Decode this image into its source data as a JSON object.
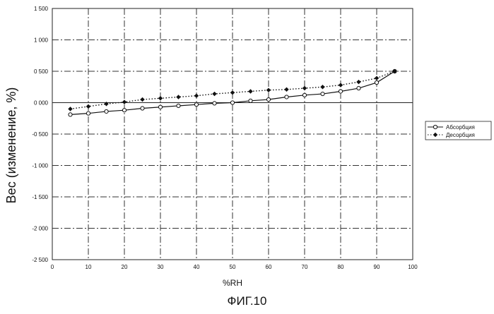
{
  "chart_data": {
    "type": "line",
    "xlabel": "%RH",
    "ylabel": "Вес (изменение, %)",
    "xlim": [
      0,
      100
    ],
    "ylim": [
      -2.5,
      1.5
    ],
    "x_ticks": [
      0,
      10,
      20,
      30,
      40,
      50,
      60,
      70,
      80,
      90,
      100
    ],
    "x_tick_labels": [
      "0",
      "10",
      "20",
      "30",
      "40",
      "50",
      "60",
      "70",
      "80",
      "90",
      "100"
    ],
    "y_ticks": [
      1.5,
      1.0,
      0.5,
      0.0,
      -0.5,
      -1.0,
      -1.5,
      -2.0,
      -2.5
    ],
    "y_tick_labels": [
      "1 500",
      "1 000",
      "0 500",
      "0 000",
      "-0 500",
      "-1 000",
      "-1 500",
      "-2 000",
      "-2 500"
    ],
    "grid": true,
    "legend_position": "right",
    "series": [
      {
        "name": "Абсорбция",
        "marker": "open-circle",
        "line": "solid",
        "x": [
          5,
          10,
          15,
          20,
          25,
          30,
          35,
          40,
          45,
          50,
          55,
          60,
          65,
          70,
          75,
          80,
          85,
          90,
          95
        ],
        "y": [
          -0.19,
          -0.17,
          -0.14,
          -0.12,
          -0.09,
          -0.07,
          -0.05,
          -0.03,
          -0.01,
          0.0,
          0.03,
          0.05,
          0.09,
          0.12,
          0.14,
          0.18,
          0.23,
          0.32,
          0.5
        ]
      },
      {
        "name": "Десорбция",
        "marker": "filled-diamond",
        "line": "dotted",
        "x": [
          5,
          10,
          15,
          20,
          25,
          30,
          35,
          40,
          45,
          50,
          55,
          60,
          65,
          70,
          75,
          80,
          85,
          90,
          95
        ],
        "y": [
          -0.1,
          -0.06,
          -0.02,
          0.01,
          0.05,
          0.07,
          0.09,
          0.11,
          0.14,
          0.16,
          0.18,
          0.2,
          0.21,
          0.23,
          0.25,
          0.28,
          0.33,
          0.39,
          0.5
        ]
      }
    ]
  },
  "caption": "ФИГ.10"
}
